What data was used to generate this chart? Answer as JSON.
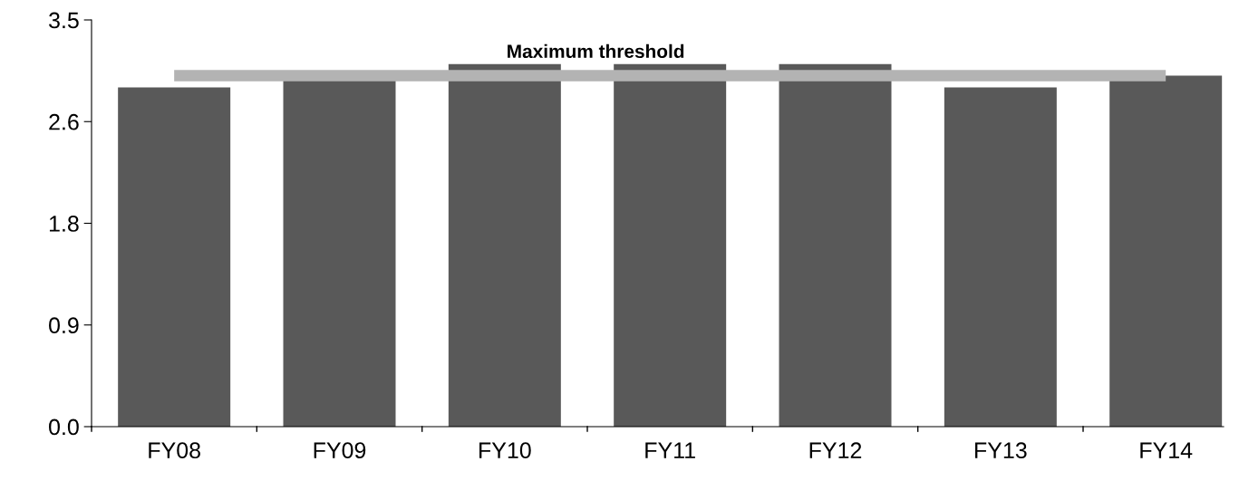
{
  "chart_data": {
    "type": "bar",
    "categories": [
      "FY08",
      "FY09",
      "FY10",
      "FY11",
      "FY12",
      "FY13",
      "FY14"
    ],
    "values": [
      2.92,
      2.98,
      3.12,
      3.12,
      3.12,
      2.92,
      3.02
    ],
    "color": "#595959",
    "ylim": [
      0,
      3.5
    ],
    "yticks": [
      {
        "value": 0,
        "label": "0.0"
      },
      {
        "value": 0.875,
        "label": "0.9"
      },
      {
        "value": 1.75,
        "label": "1.8"
      },
      {
        "value": 2.625,
        "label": "2.6"
      },
      {
        "value": 3.5,
        "label": "3.5"
      }
    ],
    "ref_lines": [
      {
        "axis": "y",
        "value": 3.02,
        "label": "Maximum threshold",
        "color": "#b3b3b3"
      }
    ],
    "grid": false,
    "legend": false
  }
}
